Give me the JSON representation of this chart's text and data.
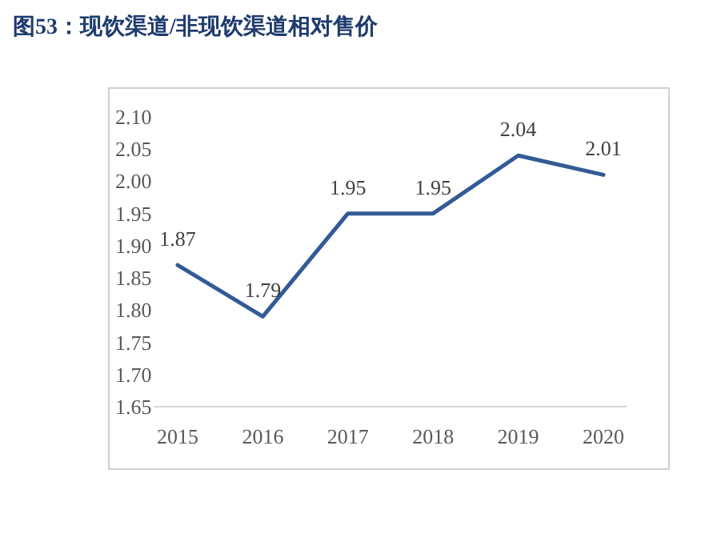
{
  "chart_data": {
    "type": "line",
    "title": "图53：现饮渠道/非现饮渠道相对售价",
    "categories": [
      "2015",
      "2016",
      "2017",
      "2018",
      "2019",
      "2020"
    ],
    "series": [
      {
        "color": "#325a96",
        "values": [
          1.87,
          1.79,
          1.95,
          1.95,
          2.04,
          2.01
        ]
      }
    ],
    "ylim": [
      1.65,
      2.1
    ],
    "yticks": [
      {
        "value": 1.65,
        "label": "1.65"
      },
      {
        "value": 1.7,
        "label": "1.70"
      },
      {
        "value": 1.75,
        "label": "1.75"
      },
      {
        "value": 1.8,
        "label": "1.80"
      },
      {
        "value": 1.85,
        "label": "1.85"
      },
      {
        "value": 1.9,
        "label": "1.90"
      },
      {
        "value": 1.95,
        "label": "1.95"
      },
      {
        "value": 2.0,
        "label": "2.00"
      },
      {
        "value": 2.05,
        "label": "2.05"
      },
      {
        "value": 2.1,
        "label": "2.10"
      }
    ],
    "data_labels": true,
    "grid": false,
    "marker": "none",
    "line_style": "solid"
  }
}
